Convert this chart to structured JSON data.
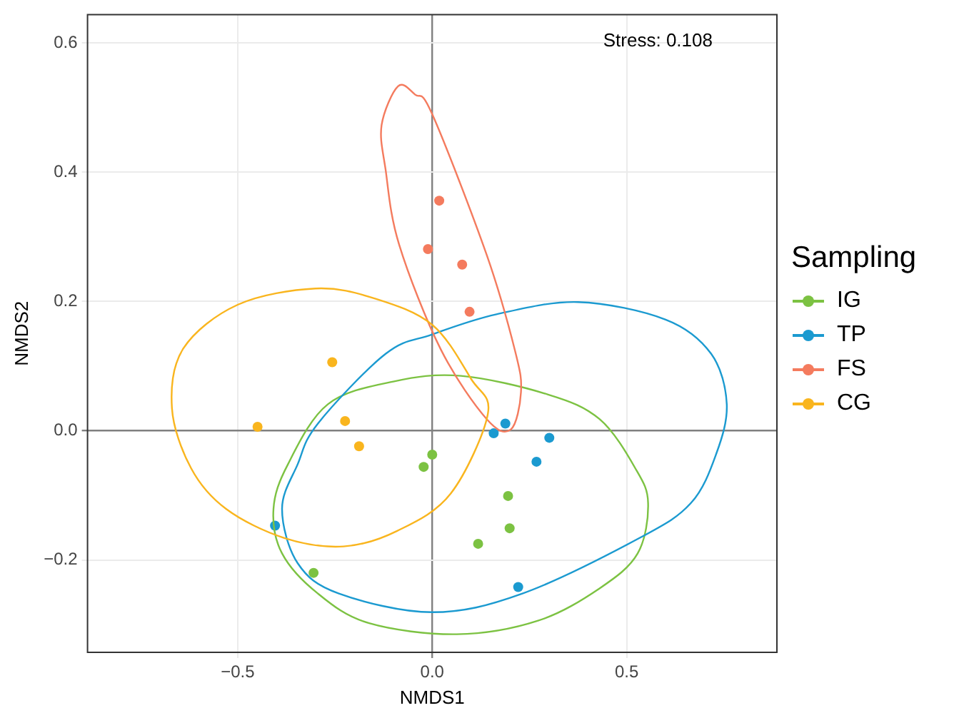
{
  "chart_data": {
    "type": "scatter",
    "xlabel": "NMDS1",
    "ylabel": "NMDS2",
    "legend_title": "Sampling",
    "legend": "right",
    "grid": true,
    "marker": "circle",
    "annotations": [
      "Stress: 0.108"
    ],
    "xlim": [
      -0.886,
      0.886
    ],
    "ylim": [
      -0.343,
      0.644
    ],
    "xticks": [
      -0.5,
      {
        "value": 0,
        "label": "0.0"
      },
      0.5
    ],
    "yticks": [
      -0.2,
      {
        "value": 0,
        "label": "0.0"
      },
      0.2,
      0.4,
      0.6
    ],
    "series": [
      {
        "name": "IG",
        "color": "#7cc242",
        "x": [
          0,
          -0.022,
          0.195,
          0.199,
          0.118,
          -0.305
        ],
        "values": [
          -0.037,
          -0.056,
          -0.101,
          -0.151,
          -0.175,
          -0.22
        ]
      },
      {
        "name": "TP",
        "color": "#1b9ad0",
        "x": [
          0.188,
          0.158,
          0.301,
          0.268,
          -0.404,
          0.221
        ],
        "values": [
          0.011,
          -0.004,
          -0.011,
          -0.048,
          -0.147,
          -0.242
        ]
      },
      {
        "name": "FS",
        "color": "#f47b5e",
        "x": [
          0.018,
          -0.011,
          0.077,
          0.096
        ],
        "values": [
          0.356,
          0.281,
          0.257,
          0.184
        ]
      },
      {
        "name": "CG",
        "color": "#f9b51e",
        "x": [
          -0.257,
          -0.449,
          -0.224,
          -0.188
        ],
        "values": [
          0.106,
          0.006,
          0.015,
          -0.024
        ]
      }
    ]
  }
}
